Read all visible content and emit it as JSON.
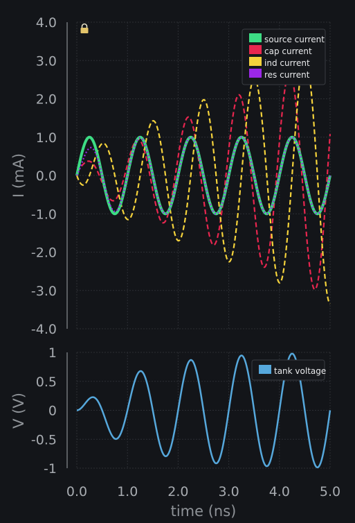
{
  "chart_data": [
    {
      "type": "line",
      "ylabel": "I (mA)",
      "xlim": [
        0,
        5
      ],
      "ylim": [
        -4,
        4
      ],
      "y_ticks": [
        "4.0",
        "3.0",
        "2.0",
        "1.0",
        "0.0",
        "-1.0",
        "-2.0",
        "-3.0",
        "-4.0"
      ],
      "grid": true,
      "legend_position": "top-right",
      "period_ns": 1.0,
      "series": [
        {
          "name": "source current",
          "color": "#3ddc84",
          "style": "solid",
          "amplitude_mA": 1.0,
          "growth_mA_per_ns": 0
        },
        {
          "name": "cap current",
          "color": "#e8264f",
          "style": "dashed",
          "amplitude_mA": 0.25,
          "growth_mA_per_ns": 0.58
        },
        {
          "name": "ind current",
          "color": "#f5d33c",
          "style": "dashed",
          "amplitude_mA": 0.6,
          "growth_mA_per_ns": 0.55
        },
        {
          "name": "res current",
          "color": "#9b27e8",
          "style": "dotted",
          "amplitude_mA": 1.0,
          "growth_mA_per_ns": 0
        }
      ],
      "lock_icon": "lock-icon"
    },
    {
      "type": "line",
      "ylabel": "V (V)",
      "xlabel": "time (ns)",
      "xlim": [
        0,
        5
      ],
      "ylim": [
        -1,
        1
      ],
      "x_ticks": [
        "0.0",
        "1.0",
        "2.0",
        "3.0",
        "4.0",
        "5.0"
      ],
      "y_ticks": [
        "1",
        "0.5",
        "0",
        "-0.5",
        "-1"
      ],
      "grid": true,
      "legend_position": "top-right",
      "series": [
        {
          "name": "tank voltage",
          "color": "#56a8dc",
          "style": "solid",
          "amplitude_V": 1.0
        }
      ]
    }
  ]
}
